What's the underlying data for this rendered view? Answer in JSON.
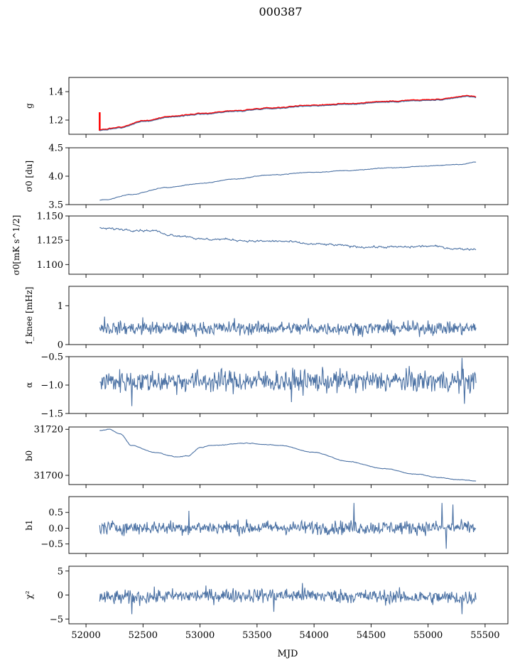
{
  "figure_title": "000387",
  "chart_data": {
    "type": "line",
    "xlabel": "MJD",
    "xlim": [
      51850,
      55700
    ],
    "x_range": [
      52120,
      55420
    ],
    "xticks": [
      52000,
      52500,
      53000,
      53500,
      54000,
      54500,
      55000,
      55500
    ],
    "xtick_labels": [
      "52000",
      "52500",
      "53000",
      "53500",
      "54000",
      "54500",
      "55000",
      "55500"
    ],
    "series_color": "#4c72a4",
    "highlight_color": "#ff0000",
    "panels": [
      {
        "id": "g",
        "ylabel": "g",
        "ylim": [
          1.1,
          1.5
        ],
        "yticks": [
          1.2,
          1.4
        ],
        "ytick_labels": [
          "1.2",
          "1.4"
        ],
        "kind": "trend",
        "highlight": true,
        "knots_x": [
          52120,
          52150,
          52300,
          52500,
          52800,
          53000,
          53300,
          53600,
          54000,
          54300,
          54600,
          54900,
          55100,
          55350,
          55420
        ],
        "knots_y": [
          1.125,
          1.13,
          1.145,
          1.19,
          1.225,
          1.24,
          1.26,
          1.28,
          1.3,
          1.31,
          1.325,
          1.335,
          1.34,
          1.365,
          1.36
        ],
        "noise": 0.003,
        "spike": {
          "x": 52120,
          "y_top": 1.255,
          "y_bottom": 1.125
        }
      },
      {
        "id": "sigma0_du",
        "ylabel": "σ0 [du]",
        "ylim": [
          3.5,
          4.5
        ],
        "yticks": [
          3.5,
          4.0,
          4.5
        ],
        "ytick_labels": [
          "3.5",
          "4.0",
          "4.5"
        ],
        "kind": "trend",
        "knots_x": [
          52150,
          52400,
          52700,
          53000,
          53300,
          53600,
          54000,
          54300,
          54700,
          55000,
          55300,
          55420
        ],
        "knots_y": [
          3.58,
          3.68,
          3.8,
          3.87,
          3.95,
          4.02,
          4.07,
          4.1,
          4.15,
          4.18,
          4.21,
          4.25
        ],
        "noise": 0.006
      },
      {
        "id": "sigma0_mk",
        "ylabel": "σ0[mK s^1/2]",
        "ylim": [
          1.09,
          1.15
        ],
        "yticks": [
          1.1,
          1.125,
          1.15
        ],
        "ytick_labels": [
          "1.100",
          "1.125",
          "1.150"
        ],
        "kind": "trend",
        "knots_x": [
          52150,
          52600,
          52700,
          52900,
          53000,
          53200,
          53500,
          53700,
          54000,
          54500,
          54800,
          55000,
          55300,
          55420
        ],
        "knots_y": [
          1.137,
          1.135,
          1.131,
          1.129,
          1.126,
          1.126,
          1.124,
          1.124,
          1.121,
          1.118,
          1.118,
          1.119,
          1.116,
          1.116
        ],
        "noise": 0.0012
      },
      {
        "id": "fknee",
        "ylabel": "f_knee [mHz]",
        "ylim": [
          0,
          1.5
        ],
        "yticks": [
          0,
          1
        ],
        "ytick_labels": [
          "0",
          "1"
        ],
        "kind": "noise",
        "mean": 0.42,
        "amp": 0.085,
        "spikes": [
          [
            52160,
            0.72
          ],
          [
            52500,
            0.7
          ],
          [
            53300,
            0.68
          ],
          [
            53950,
            0.68
          ],
          [
            55000,
            0.62
          ]
        ]
      },
      {
        "id": "alpha",
        "ylabel": "α",
        "ylim": [
          -1.5,
          -0.5
        ],
        "yticks": [
          -1.5,
          -1.0,
          -0.5
        ],
        "ytick_labels": [
          "−1.5",
          "−1.0",
          "−0.5"
        ],
        "kind": "noise",
        "mean": -0.93,
        "amp": 0.1,
        "spikes": [
          [
            52400,
            -1.37
          ],
          [
            53800,
            -1.3
          ],
          [
            55300,
            -0.52
          ],
          [
            55320,
            -1.33
          ]
        ]
      },
      {
        "id": "b0",
        "ylabel": "b0",
        "ylim": [
          31696,
          31721
        ],
        "yticks": [
          31700,
          31720
        ],
        "ytick_labels": [
          "31700",
          "31720"
        ],
        "kind": "trend",
        "knots_x": [
          52120,
          52200,
          52300,
          52400,
          52600,
          52800,
          52900,
          53000,
          53100,
          53400,
          53700,
          54000,
          54300,
          54600,
          54900,
          55100,
          55300,
          55420
        ],
        "knots_y": [
          31719.5,
          31720,
          31718,
          31713,
          31710,
          31708,
          31708.5,
          31712,
          31713,
          31714,
          31713,
          31710,
          31706,
          31703,
          31700.5,
          31699,
          31698,
          31697.5
        ],
        "noise": 0.15
      },
      {
        "id": "b1",
        "ylabel": "b1",
        "ylim": [
          -0.8,
          1.0
        ],
        "yticks": [
          -0.5,
          0.0,
          0.5
        ],
        "ytick_labels": [
          "−0.5",
          "0.0",
          "0.5"
        ],
        "kind": "noise",
        "mean": 0.02,
        "amp": 0.11,
        "spikes": [
          [
            52900,
            0.55
          ],
          [
            54350,
            0.8
          ],
          [
            55120,
            0.8
          ],
          [
            55160,
            -0.65
          ],
          [
            55220,
            0.75
          ]
        ]
      },
      {
        "id": "chi2",
        "ylabel": "χ²",
        "ylim": [
          -6,
          6
        ],
        "yticks": [
          -5,
          0,
          5
        ],
        "ytick_labels": [
          "−5",
          "0",
          "5"
        ],
        "kind": "noise",
        "mean": -0.4,
        "amp": 0.75,
        "drift": 0.8,
        "spikes": [
          [
            52400,
            -4
          ],
          [
            53650,
            -3.5
          ],
          [
            55300,
            -4
          ],
          [
            53900,
            2.5
          ]
        ]
      }
    ]
  }
}
